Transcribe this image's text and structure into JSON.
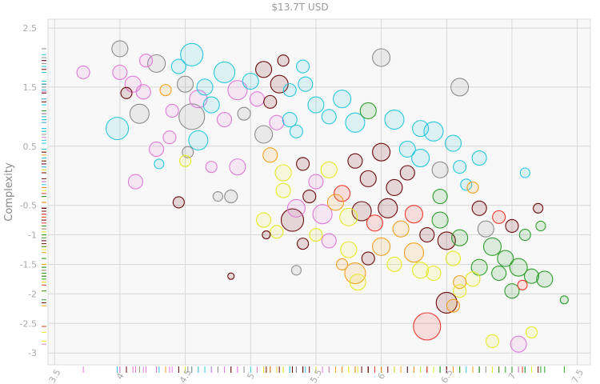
{
  "chart_data": {
    "type": "scatter",
    "title": "$13.7T USD",
    "xlabel": "",
    "ylabel": "Complexity",
    "xlim": [
      3.45,
      7.6
    ],
    "ylim": [
      -3.2,
      2.65
    ],
    "x_ticks": [
      3.5,
      4,
      4.5,
      5,
      5.5,
      6,
      6.5,
      7,
      7.5
    ],
    "x_tick_labels": [
      "3.5",
      "4",
      "4.5",
      "5",
      "5.5",
      "6",
      "6.5",
      "7",
      "7.5"
    ],
    "y_ticks": [
      2.5,
      1.5,
      0.5,
      -0.5,
      -1,
      -1.5,
      -2,
      -2.5,
      -3
    ],
    "y_tick_labels": [
      "2.5",
      "1.5",
      "0.5",
      "-0.5",
      "-1",
      "-1.5",
      "-2",
      "-2.5",
      "-3"
    ],
    "grid": true,
    "rug": true,
    "colors": {
      "teal": "#29c7dc",
      "pink": "#e07ad8",
      "gray": "#8c8c8c",
      "darkred": "#6b0a0a",
      "red": "#e8382a",
      "orange": "#f2a020",
      "yellow": "#e6ea2a",
      "green": "#2e9e2a"
    },
    "points": [
      {
        "x": 3.72,
        "y": 1.75,
        "size": 8,
        "color": "pink"
      },
      {
        "x": 4.0,
        "y": 2.15,
        "size": 10,
        "color": "gray"
      },
      {
        "x": 4.0,
        "y": 1.75,
        "size": 9,
        "color": "pink"
      },
      {
        "x": 4.2,
        "y": 1.95,
        "size": 8,
        "color": "pink"
      },
      {
        "x": 4.28,
        "y": 1.9,
        "size": 11,
        "color": "gray"
      },
      {
        "x": 4.1,
        "y": 1.55,
        "size": 10,
        "color": "pink"
      },
      {
        "x": 4.05,
        "y": 1.4,
        "size": 7,
        "color": "darkred"
      },
      {
        "x": 4.18,
        "y": 1.42,
        "size": 9,
        "color": "pink"
      },
      {
        "x": 4.35,
        "y": 1.45,
        "size": 7,
        "color": "orange"
      },
      {
        "x": 4.45,
        "y": 1.85,
        "size": 9,
        "color": "teal"
      },
      {
        "x": 4.55,
        "y": 2.05,
        "size": 14,
        "color": "teal"
      },
      {
        "x": 4.15,
        "y": 1.05,
        "size": 12,
        "color": "gray"
      },
      {
        "x": 3.98,
        "y": 0.8,
        "size": 14,
        "color": "teal"
      },
      {
        "x": 4.5,
        "y": 1.55,
        "size": 10,
        "color": "gray"
      },
      {
        "x": 4.65,
        "y": 1.5,
        "size": 10,
        "color": "teal"
      },
      {
        "x": 4.8,
        "y": 1.75,
        "size": 13,
        "color": "teal"
      },
      {
        "x": 4.9,
        "y": 1.45,
        "size": 12,
        "color": "pink"
      },
      {
        "x": 4.6,
        "y": 1.3,
        "size": 11,
        "color": "pink"
      },
      {
        "x": 4.4,
        "y": 1.1,
        "size": 8,
        "color": "pink"
      },
      {
        "x": 4.55,
        "y": 1.0,
        "size": 16,
        "color": "gray"
      },
      {
        "x": 4.7,
        "y": 1.2,
        "size": 10,
        "color": "teal"
      },
      {
        "x": 4.8,
        "y": 0.95,
        "size": 9,
        "color": "pink"
      },
      {
        "x": 4.6,
        "y": 0.6,
        "size": 12,
        "color": "teal"
      },
      {
        "x": 4.38,
        "y": 0.65,
        "size": 8,
        "color": "pink"
      },
      {
        "x": 4.28,
        "y": 0.45,
        "size": 9,
        "color": "pink"
      },
      {
        "x": 4.52,
        "y": 0.4,
        "size": 7,
        "color": "gray"
      },
      {
        "x": 4.3,
        "y": 0.2,
        "size": 6,
        "color": "teal"
      },
      {
        "x": 4.5,
        "y": 0.25,
        "size": 7,
        "color": "yellow"
      },
      {
        "x": 4.12,
        "y": -0.1,
        "size": 9,
        "color": "pink"
      },
      {
        "x": 4.7,
        "y": 0.15,
        "size": 7,
        "color": "pink"
      },
      {
        "x": 4.9,
        "y": 0.15,
        "size": 10,
        "color": "pink"
      },
      {
        "x": 4.75,
        "y": -0.35,
        "size": 6,
        "color": "gray"
      },
      {
        "x": 4.85,
        "y": -0.35,
        "size": 8,
        "color": "gray"
      },
      {
        "x": 4.45,
        "y": -0.45,
        "size": 7,
        "color": "darkred"
      },
      {
        "x": 5.0,
        "y": 1.6,
        "size": 10,
        "color": "teal"
      },
      {
        "x": 5.1,
        "y": 1.8,
        "size": 10,
        "color": "darkred"
      },
      {
        "x": 5.25,
        "y": 1.95,
        "size": 7,
        "color": "darkred"
      },
      {
        "x": 5.22,
        "y": 1.55,
        "size": 11,
        "color": "darkred"
      },
      {
        "x": 5.05,
        "y": 1.3,
        "size": 9,
        "color": "pink"
      },
      {
        "x": 5.3,
        "y": 1.45,
        "size": 8,
        "color": "teal"
      },
      {
        "x": 5.4,
        "y": 1.85,
        "size": 8,
        "color": "teal"
      },
      {
        "x": 5.42,
        "y": 1.55,
        "size": 9,
        "color": "teal"
      },
      {
        "x": 4.95,
        "y": 1.05,
        "size": 8,
        "color": "gray"
      },
      {
        "x": 5.15,
        "y": 1.25,
        "size": 8,
        "color": "darkred"
      },
      {
        "x": 5.2,
        "y": 0.9,
        "size": 9,
        "color": "pink"
      },
      {
        "x": 5.1,
        "y": 0.7,
        "size": 11,
        "color": "gray"
      },
      {
        "x": 5.3,
        "y": 0.95,
        "size": 9,
        "color": "teal"
      },
      {
        "x": 5.35,
        "y": 0.75,
        "size": 8,
        "color": "teal"
      },
      {
        "x": 5.5,
        "y": 1.2,
        "size": 10,
        "color": "teal"
      },
      {
        "x": 5.6,
        "y": 1.0,
        "size": 9,
        "color": "teal"
      },
      {
        "x": 5.7,
        "y": 1.3,
        "size": 11,
        "color": "teal"
      },
      {
        "x": 5.8,
        "y": 0.9,
        "size": 12,
        "color": "teal"
      },
      {
        "x": 5.9,
        "y": 1.1,
        "size": 10,
        "color": "green"
      },
      {
        "x": 6.0,
        "y": 2.0,
        "size": 11,
        "color": "gray"
      },
      {
        "x": 6.1,
        "y": 0.95,
        "size": 12,
        "color": "teal"
      },
      {
        "x": 6.3,
        "y": 0.8,
        "size": 10,
        "color": "teal"
      },
      {
        "x": 6.4,
        "y": 0.75,
        "size": 12,
        "color": "teal"
      },
      {
        "x": 6.6,
        "y": 1.5,
        "size": 11,
        "color": "gray"
      },
      {
        "x": 6.55,
        "y": 0.55,
        "size": 10,
        "color": "teal"
      },
      {
        "x": 6.75,
        "y": 0.3,
        "size": 9,
        "color": "teal"
      },
      {
        "x": 6.6,
        "y": 0.15,
        "size": 8,
        "color": "teal"
      },
      {
        "x": 6.45,
        "y": 0.1,
        "size": 10,
        "color": "gray"
      },
      {
        "x": 6.3,
        "y": 0.3,
        "size": 11,
        "color": "teal"
      },
      {
        "x": 6.2,
        "y": 0.45,
        "size": 10,
        "color": "teal"
      },
      {
        "x": 7.1,
        "y": 0.05,
        "size": 6,
        "color": "teal"
      },
      {
        "x": 6.65,
        "y": -0.15,
        "size": 7,
        "color": "teal"
      },
      {
        "x": 5.15,
        "y": 0.35,
        "size": 9,
        "color": "orange"
      },
      {
        "x": 5.25,
        "y": 0.05,
        "size": 10,
        "color": "yellow"
      },
      {
        "x": 5.4,
        "y": 0.2,
        "size": 8,
        "color": "darkred"
      },
      {
        "x": 5.5,
        "y": -0.1,
        "size": 9,
        "color": "pink"
      },
      {
        "x": 5.6,
        "y": 0.1,
        "size": 10,
        "color": "yellow"
      },
      {
        "x": 5.7,
        "y": -0.3,
        "size": 10,
        "color": "red"
      },
      {
        "x": 5.8,
        "y": 0.25,
        "size": 9,
        "color": "darkred"
      },
      {
        "x": 5.9,
        "y": -0.05,
        "size": 10,
        "color": "darkred"
      },
      {
        "x": 6.0,
        "y": 0.4,
        "size": 11,
        "color": "darkred"
      },
      {
        "x": 6.1,
        "y": -0.2,
        "size": 10,
        "color": "darkred"
      },
      {
        "x": 6.2,
        "y": 0.05,
        "size": 9,
        "color": "darkred"
      },
      {
        "x": 5.25,
        "y": -0.25,
        "size": 9,
        "color": "yellow"
      },
      {
        "x": 5.35,
        "y": -0.55,
        "size": 11,
        "color": "pink"
      },
      {
        "x": 5.45,
        "y": -0.35,
        "size": 8,
        "color": "darkred"
      },
      {
        "x": 5.55,
        "y": -0.65,
        "size": 12,
        "color": "pink"
      },
      {
        "x": 5.65,
        "y": -0.45,
        "size": 10,
        "color": "orange"
      },
      {
        "x": 5.75,
        "y": -0.7,
        "size": 11,
        "color": "yellow"
      },
      {
        "x": 5.85,
        "y": -0.6,
        "size": 12,
        "color": "darkred"
      },
      {
        "x": 5.95,
        "y": -0.8,
        "size": 10,
        "color": "red"
      },
      {
        "x": 6.05,
        "y": -0.55,
        "size": 12,
        "color": "darkred"
      },
      {
        "x": 6.15,
        "y": -0.9,
        "size": 10,
        "color": "orange"
      },
      {
        "x": 6.25,
        "y": -0.65,
        "size": 11,
        "color": "red"
      },
      {
        "x": 6.35,
        "y": -1.0,
        "size": 9,
        "color": "darkred"
      },
      {
        "x": 6.45,
        "y": -0.75,
        "size": 10,
        "color": "green"
      },
      {
        "x": 5.1,
        "y": -0.75,
        "size": 9,
        "color": "yellow"
      },
      {
        "x": 5.32,
        "y": -0.75,
        "size": 14,
        "color": "darkred"
      },
      {
        "x": 5.2,
        "y": -0.95,
        "size": 8,
        "color": "yellow"
      },
      {
        "x": 5.5,
        "y": -1.0,
        "size": 8,
        "color": "yellow"
      },
      {
        "x": 5.6,
        "y": -1.1,
        "size": 9,
        "color": "pink"
      },
      {
        "x": 5.75,
        "y": -1.25,
        "size": 10,
        "color": "yellow"
      },
      {
        "x": 5.9,
        "y": -1.4,
        "size": 8,
        "color": "darkred"
      },
      {
        "x": 6.0,
        "y": -1.2,
        "size": 11,
        "color": "orange"
      },
      {
        "x": 6.1,
        "y": -1.5,
        "size": 9,
        "color": "yellow"
      },
      {
        "x": 6.25,
        "y": -1.3,
        "size": 12,
        "color": "orange"
      },
      {
        "x": 6.3,
        "y": -1.6,
        "size": 10,
        "color": "yellow"
      },
      {
        "x": 6.5,
        "y": -1.1,
        "size": 11,
        "color": "darkred"
      },
      {
        "x": 6.55,
        "y": -1.4,
        "size": 9,
        "color": "yellow"
      },
      {
        "x": 6.6,
        "y": -1.8,
        "size": 8,
        "color": "orange"
      },
      {
        "x": 6.5,
        "y": -2.15,
        "size": 13,
        "color": "darkred"
      },
      {
        "x": 6.35,
        "y": -2.55,
        "size": 17,
        "color": "red"
      },
      {
        "x": 5.4,
        "y": -1.15,
        "size": 7,
        "color": "darkred"
      },
      {
        "x": 5.12,
        "y": -1.0,
        "size": 5,
        "color": "darkred"
      },
      {
        "x": 5.35,
        "y": -1.6,
        "size": 6,
        "color": "gray"
      },
      {
        "x": 4.85,
        "y": -1.7,
        "size": 4,
        "color": "darkred"
      },
      {
        "x": 5.7,
        "y": -1.5,
        "size": 7,
        "color": "orange"
      },
      {
        "x": 5.8,
        "y": -1.65,
        "size": 13,
        "color": "orange"
      },
      {
        "x": 5.82,
        "y": -1.8,
        "size": 10,
        "color": "yellow"
      },
      {
        "x": 6.4,
        "y": -1.65,
        "size": 9,
        "color": "yellow"
      },
      {
        "x": 6.7,
        "y": -1.75,
        "size": 9,
        "color": "yellow"
      },
      {
        "x": 6.6,
        "y": -1.95,
        "size": 8,
        "color": "yellow"
      },
      {
        "x": 6.7,
        "y": -0.2,
        "size": 7,
        "color": "orange"
      },
      {
        "x": 6.75,
        "y": -0.55,
        "size": 9,
        "color": "darkred"
      },
      {
        "x": 6.8,
        "y": -0.9,
        "size": 10,
        "color": "gray"
      },
      {
        "x": 6.85,
        "y": -1.2,
        "size": 11,
        "color": "green"
      },
      {
        "x": 6.9,
        "y": -0.7,
        "size": 8,
        "color": "red"
      },
      {
        "x": 6.95,
        "y": -1.4,
        "size": 10,
        "color": "green"
      },
      {
        "x": 7.0,
        "y": -0.85,
        "size": 8,
        "color": "darkred"
      },
      {
        "x": 7.05,
        "y": -1.55,
        "size": 11,
        "color": "green"
      },
      {
        "x": 7.1,
        "y": -1.0,
        "size": 7,
        "color": "green"
      },
      {
        "x": 7.15,
        "y": -1.7,
        "size": 9,
        "color": "green"
      },
      {
        "x": 7.2,
        "y": -0.55,
        "size": 6,
        "color": "darkred"
      },
      {
        "x": 7.25,
        "y": -1.75,
        "size": 10,
        "color": "green"
      },
      {
        "x": 7.22,
        "y": -0.85,
        "size": 6,
        "color": "green"
      },
      {
        "x": 6.75,
        "y": -1.55,
        "size": 10,
        "color": "green"
      },
      {
        "x": 6.9,
        "y": -1.65,
        "size": 9,
        "color": "green"
      },
      {
        "x": 7.0,
        "y": -1.95,
        "size": 9,
        "color": "green"
      },
      {
        "x": 7.08,
        "y": -1.85,
        "size": 6,
        "color": "red"
      },
      {
        "x": 7.4,
        "y": -2.1,
        "size": 5,
        "color": "green"
      },
      {
        "x": 7.15,
        "y": -2.65,
        "size": 7,
        "color": "yellow"
      },
      {
        "x": 7.05,
        "y": -2.85,
        "size": 10,
        "color": "pink"
      },
      {
        "x": 6.85,
        "y": -2.8,
        "size": 8,
        "color": "yellow"
      },
      {
        "x": 6.55,
        "y": -2.2,
        "size": 8,
        "color": "orange"
      },
      {
        "x": 6.6,
        "y": -1.05,
        "size": 10,
        "color": "green"
      },
      {
        "x": 6.45,
        "y": -0.35,
        "size": 9,
        "color": "green"
      }
    ]
  }
}
